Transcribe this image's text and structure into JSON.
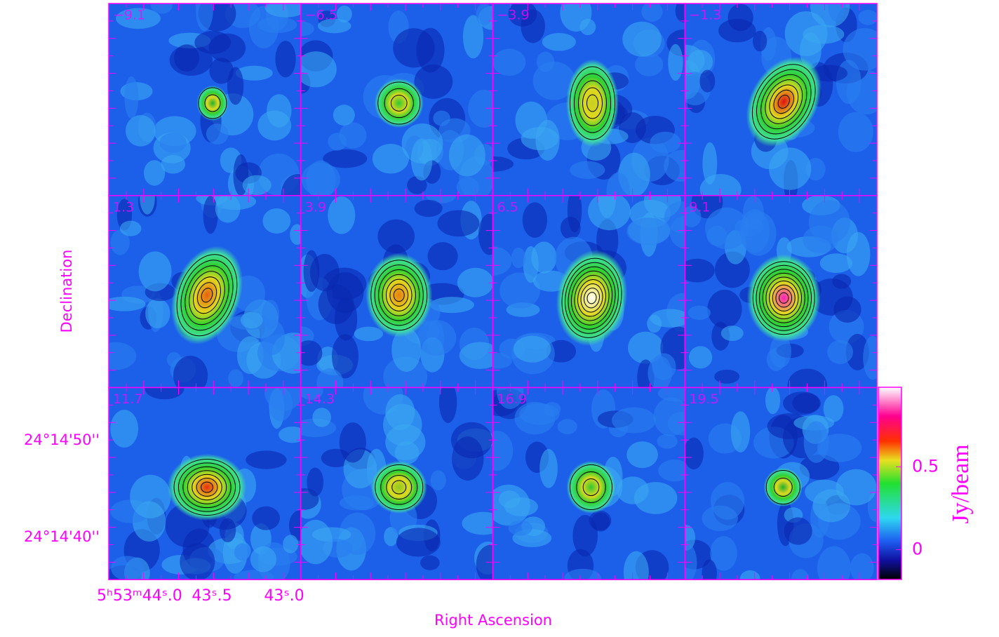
{
  "chart_data": {
    "type": "channel-map",
    "panels": [
      "−9.1",
      "−6.5",
      "−3.9",
      "−1.3",
      "1.3",
      "3.9",
      "6.5",
      "9.1",
      "11.7",
      "14.3",
      "16.9",
      "19.5"
    ],
    "x_label": "Right Ascension",
    "y_label": "Declination",
    "x_tick_labels": [
      "5ʰ53ᵐ44ˢ.0",
      "43ˢ.5",
      "43ˢ.0"
    ],
    "y_tick_labels": [
      "24°14'50''",
      "24°14'40''"
    ],
    "colorbar": {
      "label": "Jy/beam",
      "clim": [
        -0.18,
        0.98
      ],
      "ticks": [
        0,
        0.5
      ]
    }
  }
}
